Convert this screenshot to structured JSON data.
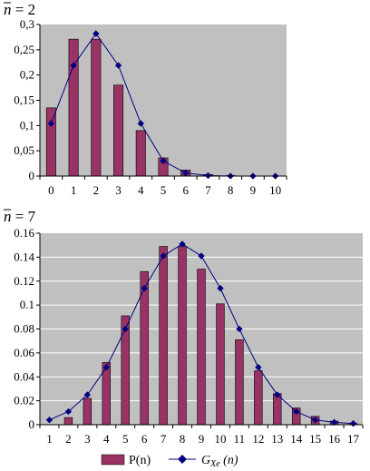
{
  "chart_data": [
    {
      "type": "bar",
      "title": "n̄ = 2",
      "title_var": "n",
      "title_rest": " = 2",
      "categories": [
        "0",
        "1",
        "2",
        "3",
        "4",
        "5",
        "6",
        "7",
        "8",
        "9",
        "10"
      ],
      "series": [
        {
          "name": "P(n)",
          "kind": "bar",
          "color": "#993366",
          "values": [
            0.135,
            0.271,
            0.271,
            0.18,
            0.09,
            0.036,
            0.012,
            0.003,
            0.001,
            0.0,
            0.0
          ]
        },
        {
          "name": "G_Xe(n)",
          "kind": "line",
          "color": "#000080",
          "values": [
            0.104,
            0.219,
            0.282,
            0.219,
            0.104,
            0.03,
            0.006,
            0.001,
            0.0,
            0.0,
            0.0
          ]
        }
      ],
      "ylim": [
        0,
        0.3
      ],
      "yticks": [
        "0",
        "0,05",
        "0,1",
        "0,15",
        "0,2",
        "0,25",
        "0,3"
      ],
      "grid": false,
      "plot_bg": "#c0c0c0"
    },
    {
      "type": "bar",
      "title": "n̄ = 7",
      "title_var": "n",
      "title_rest": " = 7",
      "categories": [
        "1",
        "2",
        "3",
        "4",
        "5",
        "6",
        "7",
        "8",
        "9",
        "10",
        "11",
        "12",
        "13",
        "14",
        "15",
        "16",
        "17"
      ],
      "series": [
        {
          "name": "P(n)",
          "kind": "bar",
          "color": "#993366",
          "values": [
            0.0,
            0.006,
            0.022,
            0.052,
            0.091,
            0.128,
            0.149,
            0.149,
            0.13,
            0.101,
            0.071,
            0.045,
            0.026,
            0.014,
            0.007,
            0.003,
            0.001
          ]
        },
        {
          "name": "G_Xe(n)",
          "kind": "line",
          "color": "#000080",
          "values": [
            0.004,
            0.011,
            0.025,
            0.048,
            0.08,
            0.114,
            0.141,
            0.151,
            0.141,
            0.114,
            0.08,
            0.048,
            0.025,
            0.011,
            0.004,
            0.002,
            0.001
          ]
        }
      ],
      "ylim": [
        0,
        0.16
      ],
      "yticks": [
        "0",
        "0.02",
        "0.04",
        "0.06",
        "0.08",
        "0.1",
        "0.12",
        "0.14",
        "0.16"
      ],
      "grid": true,
      "plot_bg": "#c0c0c0"
    }
  ],
  "legend": {
    "placement": "bottom",
    "items": [
      {
        "label": "P(n)",
        "kind": "bar",
        "color": "#993366"
      },
      {
        "label_main": "G",
        "label_sub": "Xe",
        "label_arg": " (n)",
        "kind": "line",
        "color": "#000080"
      }
    ]
  }
}
